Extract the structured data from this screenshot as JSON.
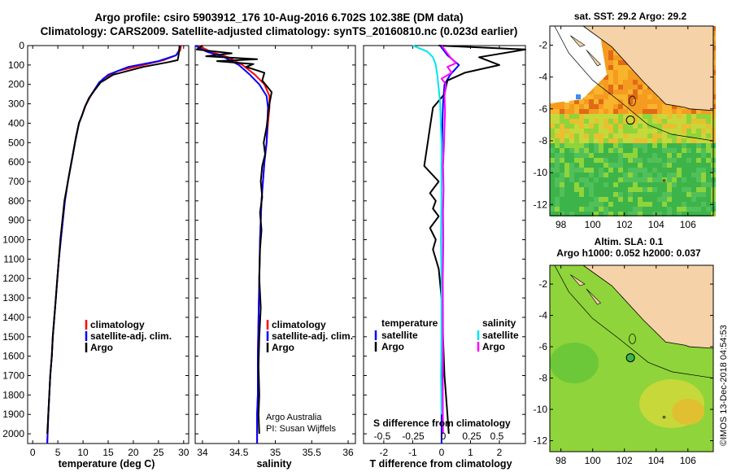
{
  "header": {
    "title_line1": "Argo profile: csiro 5903912_176 10-Aug-2016 6.702S 102.38E (DM data)",
    "title_line2": "Climatology: CARS2009. Satellite-adjusted climatology: synTS_20160810.nc (0.023d earlier)"
  },
  "depth_ticks": [
    0,
    100,
    200,
    300,
    400,
    500,
    600,
    700,
    800,
    900,
    1000,
    1100,
    1200,
    1300,
    1400,
    1500,
    1600,
    1700,
    1800,
    1900,
    2000
  ],
  "panels": {
    "temperature": {
      "xlabel": "temperature (deg C)",
      "ticks": [
        "0",
        "5",
        "10",
        "15",
        "20",
        "25",
        "30"
      ],
      "legend": [
        "climatology",
        "satellite-adj. clim.",
        "Argo"
      ]
    },
    "salinity": {
      "xlabel": "salinity",
      "ticks": [
        "34",
        "34.5",
        "35",
        "35.5",
        "36"
      ],
      "legend": [
        "climatology",
        "satellite-adj. clim.",
        "Argo"
      ],
      "note1": "Argo Australia",
      "note2": "PI: Susan Wijffels"
    },
    "difference": {
      "xlabel": "T difference from climatology",
      "ticks": [
        "-2",
        "-1",
        "0",
        "1",
        "2"
      ],
      "s_label": "S difference from climatology",
      "s_ticks": [
        "-0.5",
        "-0.25",
        "0",
        "0.25",
        "0.5"
      ],
      "legend_temp_title": "temperature",
      "legend_sal_title": "salinity",
      "legend_items": [
        "satellite",
        "Argo"
      ]
    }
  },
  "maps": {
    "sst_title": "sat. SST: 29.2 Argo: 29.2",
    "sla_title1": "Altim. SLA: 0.1",
    "sla_title2": "Argo h1000: 0.052 h2000: 0.037",
    "lat_ticks": [
      "-2",
      "-4",
      "-6",
      "-8",
      "-10",
      "-12"
    ],
    "lon_ticks": [
      "98",
      "100",
      "102",
      "104",
      "106"
    ]
  },
  "credit": "©IMOS 13-Dec-2018 04:54:53",
  "colors": {
    "climatology": "#ff0000",
    "satellite": "#0000ff",
    "argo": "#000000",
    "sat_t": "#00e5ee",
    "sal_argo": "#ff00ff"
  },
  "chart_data": [
    {
      "type": "line",
      "xlabel": "temperature (deg C)",
      "ylabel": "",
      "xlim": [
        -1,
        31
      ],
      "ylim": [
        2050,
        0
      ],
      "series": [
        {
          "name": "climatology",
          "x": [
            29.5,
            29.3,
            28.5,
            26,
            22,
            17,
            14,
            12.8,
            11.5,
            10.5,
            9.8,
            9.2,
            8.4,
            7.7,
            7.0,
            6.4,
            6.0,
            5.6,
            5.2,
            4.9,
            4.6,
            4.3,
            4.0,
            3.8,
            3.5,
            3.3,
            3.1,
            2.9
          ],
          "y": [
            0,
            25,
            50,
            75,
            100,
            130,
            170,
            210,
            260,
            310,
            360,
            400,
            500,
            600,
            700,
            800,
            900,
            1000,
            1100,
            1200,
            1300,
            1400,
            1500,
            1600,
            1700,
            1800,
            1900,
            2050
          ]
        },
        {
          "name": "satellite-adj. clim.",
          "x": [
            29.2,
            29.1,
            28.5,
            25,
            19,
            15,
            13.2,
            12.2,
            11.2,
            10.4,
            9.8,
            9.2,
            8.4,
            7.7,
            7.0,
            6.4,
            6.0,
            5.6,
            5.2,
            4.9,
            4.6,
            4.3,
            4.0,
            3.8,
            3.5,
            3.3,
            3.1,
            2.9
          ],
          "y": [
            0,
            25,
            50,
            80,
            110,
            150,
            190,
            230,
            270,
            315,
            360,
            400,
            500,
            600,
            700,
            800,
            900,
            1000,
            1100,
            1200,
            1300,
            1400,
            1500,
            1600,
            1700,
            1800,
            1900,
            2050
          ]
        },
        {
          "name": "Argo",
          "x": [
            29.2,
            29.1,
            29.0,
            28.8,
            27,
            22,
            16,
            13.5,
            12.3,
            11.2,
            10.4,
            9.8,
            9.2,
            8.6,
            8.0,
            7.0,
            6.3,
            5.9,
            5.5,
            5.2,
            4.9,
            4.6,
            4.3,
            4.0,
            3.8,
            3.5,
            3.3,
            3.1,
            2.9
          ],
          "y": [
            0,
            25,
            50,
            75,
            85,
            110,
            150,
            190,
            230,
            270,
            315,
            360,
            400,
            470,
            560,
            700,
            800,
            900,
            1000,
            1100,
            1200,
            1300,
            1400,
            1500,
            1600,
            1700,
            1800,
            1900,
            2000
          ]
        }
      ]
    },
    {
      "type": "line",
      "xlabel": "salinity",
      "ylabel": "",
      "xlim": [
        33.9,
        36.1
      ],
      "ylim": [
        2050,
        0
      ],
      "series": [
        {
          "name": "climatology",
          "x": [
            33.95,
            34.1,
            34.35,
            34.55,
            34.72,
            34.85,
            34.92,
            34.92,
            34.9,
            34.88,
            34.85,
            34.83,
            34.81,
            34.8,
            34.79,
            34.78,
            34.77,
            34.76,
            34.76,
            34.75,
            34.75
          ],
          "y": [
            0,
            30,
            60,
            100,
            150,
            200,
            260,
            320,
            400,
            500,
            600,
            700,
            800,
            900,
            1000,
            1200,
            1400,
            1600,
            1800,
            1900,
            2050
          ]
        },
        {
          "name": "satellite-adj. clim.",
          "x": [
            33.9,
            34.05,
            34.3,
            34.5,
            34.65,
            34.78,
            34.88,
            34.9,
            34.89,
            34.88,
            34.85,
            34.83,
            34.81,
            34.8,
            34.79,
            34.78,
            34.77,
            34.76,
            34.76,
            34.75,
            34.75
          ],
          "y": [
            0,
            30,
            60,
            100,
            150,
            200,
            260,
            320,
            400,
            500,
            600,
            700,
            800,
            900,
            1000,
            1200,
            1400,
            1600,
            1800,
            1900,
            2050
          ]
        },
        {
          "name": "Argo",
          "x": [
            34.0,
            33.92,
            34.4,
            34.05,
            34.75,
            34.2,
            34.7,
            34.6,
            34.85,
            34.82,
            34.95,
            34.92,
            34.9,
            34.88,
            34.84,
            34.86,
            34.82,
            34.8,
            34.82,
            34.79,
            34.81,
            34.79,
            34.78,
            34.8,
            34.78,
            34.77,
            34.78,
            34.77,
            34.78
          ],
          "y": [
            0,
            20,
            40,
            55,
            70,
            80,
            95,
            110,
            140,
            180,
            240,
            300,
            360,
            420,
            500,
            560,
            620,
            700,
            780,
            860,
            950,
            1050,
            1200,
            1350,
            1500,
            1650,
            1800,
            1900,
            2000
          ]
        }
      ]
    },
    {
      "type": "line",
      "xlabel": "T difference from climatology",
      "ylabel": "",
      "xlim": [
        -2.7,
        2.9
      ],
      "ylim": [
        2050,
        0
      ],
      "series": [
        {
          "name": "temperature satellite",
          "x": [
            -0.05,
            0.2,
            0.6,
            0.3,
            0.1,
            0.05,
            0.03,
            0.02,
            0.0,
            0.0,
            -0.01,
            0.0,
            0.0,
            0.0,
            0.0,
            0.0,
            0.0,
            0.0
          ],
          "y": [
            0,
            50,
            100,
            150,
            200,
            300,
            400,
            500,
            600,
            800,
            1000,
            1200,
            1400,
            1500,
            1600,
            1800,
            1900,
            2050
          ]
        },
        {
          "name": "temperature Argo",
          "x": [
            -0.1,
            2.9,
            1.3,
            2.0,
            0.8,
            0.2,
            0.1,
            -0.3,
            -0.4,
            -0.5,
            -0.6,
            -0.1,
            -0.4,
            -0.2,
            -0.3,
            -0.1,
            -0.4,
            -0.2,
            -0.3,
            -0.1,
            0.0,
            0.05,
            0.1,
            0.2,
            0.25
          ],
          "y": [
            0,
            20,
            60,
            100,
            140,
            180,
            250,
            320,
            420,
            520,
            620,
            700,
            760,
            800,
            840,
            880,
            940,
            1000,
            1050,
            1150,
            1300,
            1500,
            1700,
            1900,
            2000
          ]
        },
        {
          "name": "salinity satellite",
          "x": [
            -1.0,
            -0.5,
            -0.3,
            -0.2,
            -0.15,
            -0.1,
            -0.05,
            -0.03,
            0.0,
            0.0,
            0.0,
            0.0,
            0.0,
            0.0,
            -0.02,
            0.0
          ],
          "y": [
            0,
            30,
            60,
            100,
            150,
            220,
            300,
            400,
            500,
            700,
            900,
            1100,
            1300,
            1500,
            1700,
            1900
          ]
        },
        {
          "name": "salinity Argo",
          "x": [
            0.0,
            0.3,
            0.5,
            0.2,
            0.35,
            0.0,
            0.15,
            0.1,
            0.12,
            0.1,
            0.08,
            0.05,
            0.07,
            0.05,
            0.06,
            0.04,
            0.05,
            0.04,
            0.05
          ],
          "y": [
            0,
            60,
            90,
            110,
            140,
            170,
            200,
            260,
            340,
            420,
            520,
            620,
            740,
            860,
            1000,
            1200,
            1500,
            1800,
            2000
          ]
        }
      ]
    }
  ]
}
